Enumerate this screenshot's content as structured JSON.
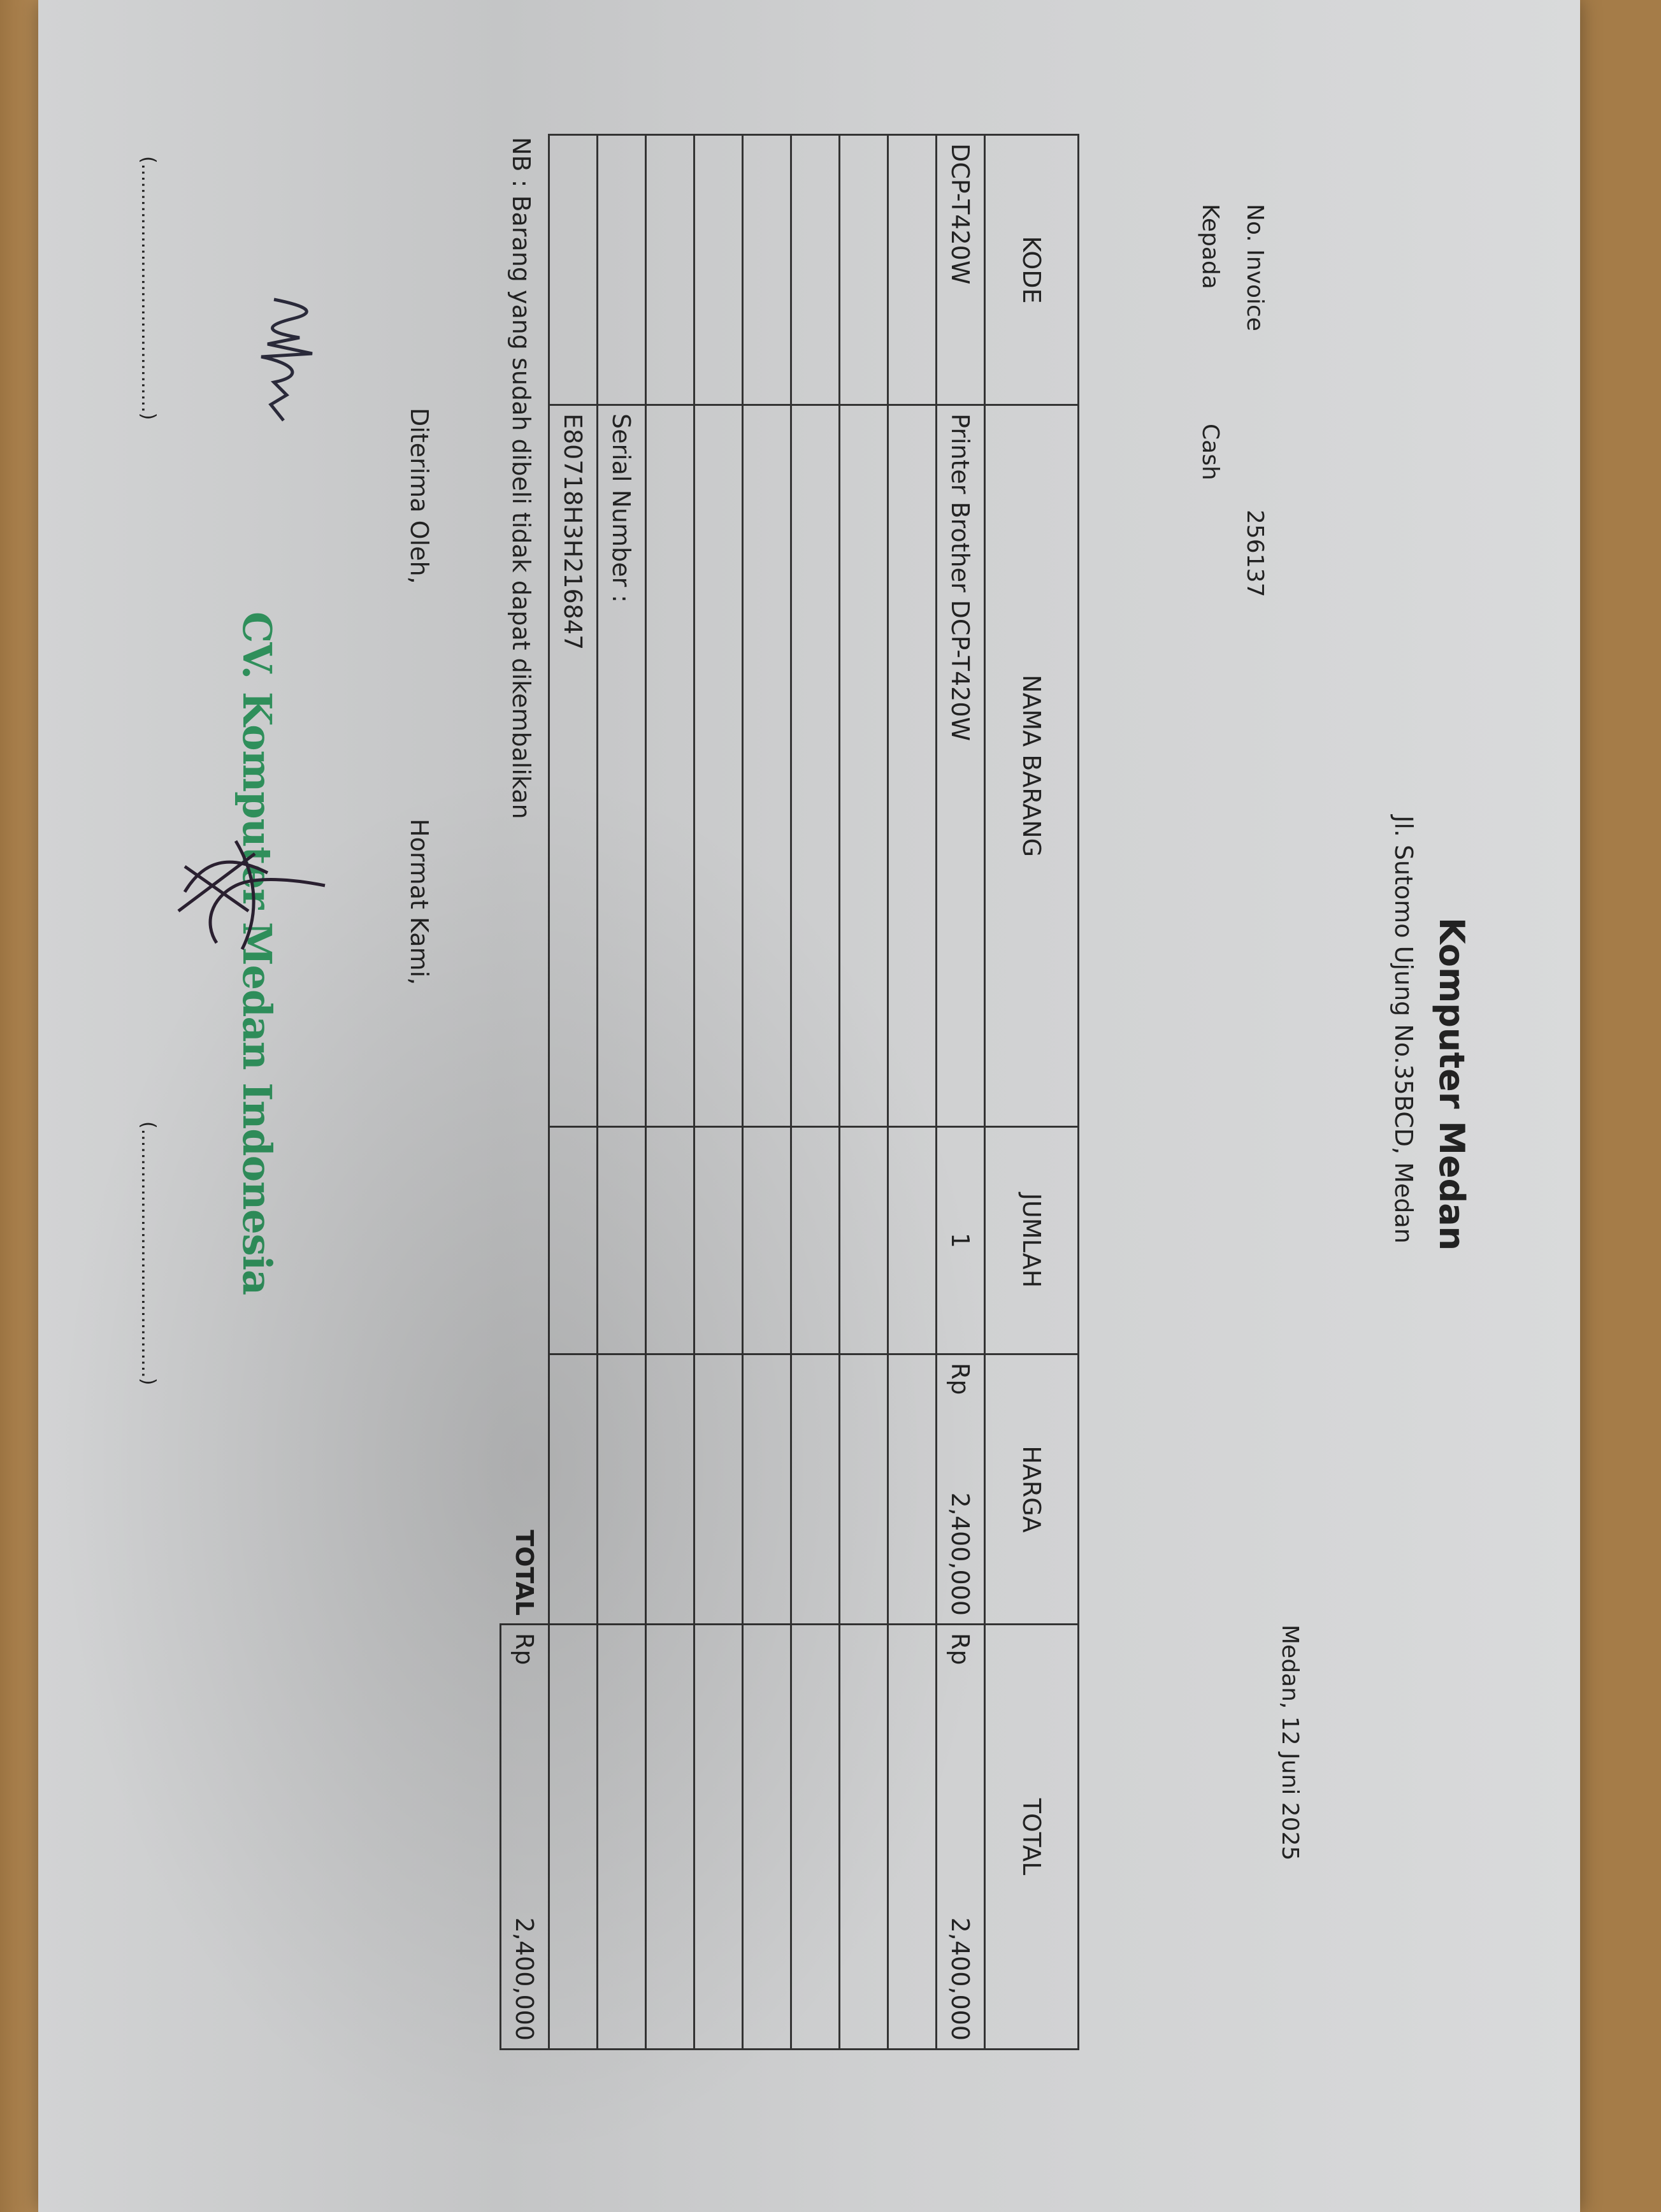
{
  "header": {
    "company": "Komputer Medan",
    "address": "Jl. Sutomo Ujung No.35BCD, Medan"
  },
  "meta": {
    "invoice_label": "No. Invoice",
    "invoice_no": "256137",
    "to_label": "Kepada",
    "to_value": "Cash",
    "date": "Medan, 12 Juni 2025"
  },
  "table": {
    "columns": [
      "KODE",
      "NAMA BARANG",
      "JUMLAH",
      "HARGA",
      "TOTAL"
    ],
    "rows": [
      {
        "kode": "DCP-T420W",
        "nama": "Printer Brother DCP-T420W",
        "jumlah": "1",
        "harga_cur": "Rp",
        "harga": "2,400,000",
        "total_cur": "Rp",
        "total": "2,400,000"
      },
      {
        "nama": ""
      },
      {
        "nama": ""
      },
      {
        "nama": ""
      },
      {
        "nama": ""
      },
      {
        "nama": ""
      },
      {
        "nama": ""
      },
      {
        "nama": "Serial Number :"
      },
      {
        "nama": "E80718H3H216847"
      }
    ],
    "total_label": "TOTAL",
    "total_cur": "Rp",
    "total_value": "2,400,000"
  },
  "note": "NB : Barang yang sudah dibeli tidak dapat dikembalikan",
  "footer": {
    "received_label": "Diterima Oleh,",
    "regards_label": "Hormat Kami,",
    "stamp": "CV. Komputer Medan Indonesia",
    "sign_line_left": "(.........................................)",
    "sign_line_right": "(.........................................)"
  },
  "colors": {
    "stamp": "#2f8f5b",
    "paper": "#d4d5d6",
    "table_border": "#333333"
  }
}
